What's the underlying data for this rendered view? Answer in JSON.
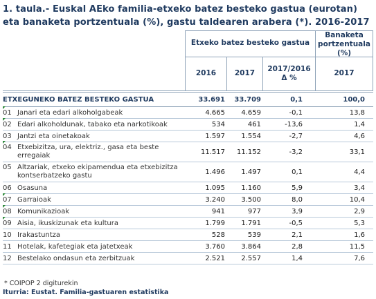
{
  "title": "1. taula.- Euskal AEko familia-etxeko batez besteko gastua (eurotan) eta banaketa portzentuala (%), gastu taldearen arabera (*). 2016-2017",
  "header": {
    "group_label": "Etxeko batez besteko gastua",
    "share_label_1": "Banaketa",
    "share_label_2": "portzentuala",
    "share_label_3": "(%)",
    "col_2016": "2016",
    "col_2017": "2017",
    "col_var_1": "2017/2016",
    "col_var_2": "Δ %",
    "col_share_2017": "2017"
  },
  "total": {
    "label": "ETXEGUNEKO BATEZ BESTEKO GASTUA",
    "v2016": "33.691",
    "v2017": "33.709",
    "var": "0,1",
    "share": "100,0"
  },
  "rows": [
    {
      "code": "01",
      "label": "Janari eta edari alkoholgabeak",
      "v2016": "4.665",
      "v2017": "4.659",
      "var": "-0,1",
      "share": "13,8"
    },
    {
      "code": "02",
      "label": "Edari alkoholdunak, tabako eta narkotikoak",
      "v2016": "534",
      "v2017": "461",
      "var": "-13,6",
      "share": "1,4"
    },
    {
      "code": "03",
      "label": "Jantzi eta oinetakoak",
      "v2016": "1.597",
      "v2017": "1.554",
      "var": "-2,7",
      "share": "4,6"
    },
    {
      "code": "04",
      "label": "Etxebizitza, ura, elektriz., gasa eta beste erregaiak",
      "v2016": "11.517",
      "v2017": "11.152",
      "var": "-3,2",
      "share": "33,1"
    },
    {
      "code": "05",
      "label": "Altzariak, etxeko ekipamendua eta etxebizitza kontserbatzeko gastu",
      "v2016": "1.496",
      "v2017": "1.497",
      "var": "0,1",
      "share": "4,4"
    },
    {
      "code": "06",
      "label": "Osasuna",
      "v2016": "1.095",
      "v2017": "1.160",
      "var": "5,9",
      "share": "3,4"
    },
    {
      "code": "07",
      "label": "Garraioak",
      "v2016": "3.240",
      "v2017": "3.500",
      "var": "8,0",
      "share": "10,4"
    },
    {
      "code": "08",
      "label": "Komunikazioak",
      "v2016": "941",
      "v2017": "977",
      "var": "3,9",
      "share": "2,9"
    },
    {
      "code": "09",
      "label": "Aisia, ikuskizunak eta kultura",
      "v2016": "1.799",
      "v2017": "1.791",
      "var": "-0,5",
      "share": "5,3"
    },
    {
      "code": "10",
      "label": "Irakastuntza",
      "v2016": "528",
      "v2017": "539",
      "var": "2,1",
      "share": "1,6"
    },
    {
      "code": "11",
      "label": "Hotelak, kafetegiak eta jatetxeak",
      "v2016": "3.760",
      "v2017": "3.864",
      "var": "2,8",
      "share": "11,5"
    },
    {
      "code": "12",
      "label": "Bestelako ondasun eta zerbitzuak",
      "v2016": "2.521",
      "v2017": "2.557",
      "var": "1,4",
      "share": "7,6"
    }
  ],
  "footnote": "* COIPOP 2 digiturekin",
  "source": "Iturria: Eustat. Familia-gastuaren estatistika",
  "colors": {
    "heading": "#1f3a5f",
    "rule": "#8fa3b8",
    "marker": "#2e8b3a"
  }
}
